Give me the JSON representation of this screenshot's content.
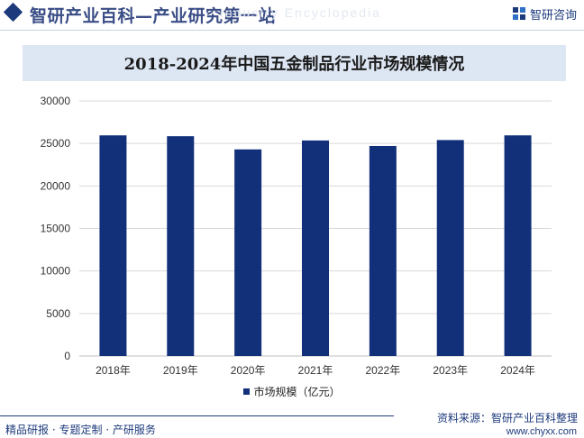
{
  "header": {
    "site_title": "智研产业百科—产业研究第一站",
    "watermark": "Industry Encyclopedia",
    "logo_text": "智研咨询"
  },
  "footer": {
    "tagline": "精品研报 · 专题定制 · 产研服务",
    "source": "资料来源：智研产业百科整理",
    "url": "www.chyxx.com"
  },
  "colors": {
    "bar": "#12307a",
    "brand": "#1d3a7c",
    "title_band": "#dde6f3",
    "grid": "#d9d9d9"
  },
  "chart_data": {
    "type": "bar",
    "title": "2018-2024年中国五金制品行业市场规模情况",
    "categories": [
      "2018年",
      "2019年",
      "2020年",
      "2021年",
      "2022年",
      "2023年",
      "2024年"
    ],
    "series": [
      {
        "name": "市场规模（亿元）",
        "values": [
          25950,
          25850,
          24300,
          25350,
          24700,
          25400,
          25950
        ]
      }
    ],
    "y_ticks": [
      "0",
      "5000",
      "10000",
      "15000",
      "20000",
      "25000",
      "30000"
    ],
    "ylim": [
      0,
      30000
    ],
    "grid": true,
    "legend_position": "bottom"
  }
}
